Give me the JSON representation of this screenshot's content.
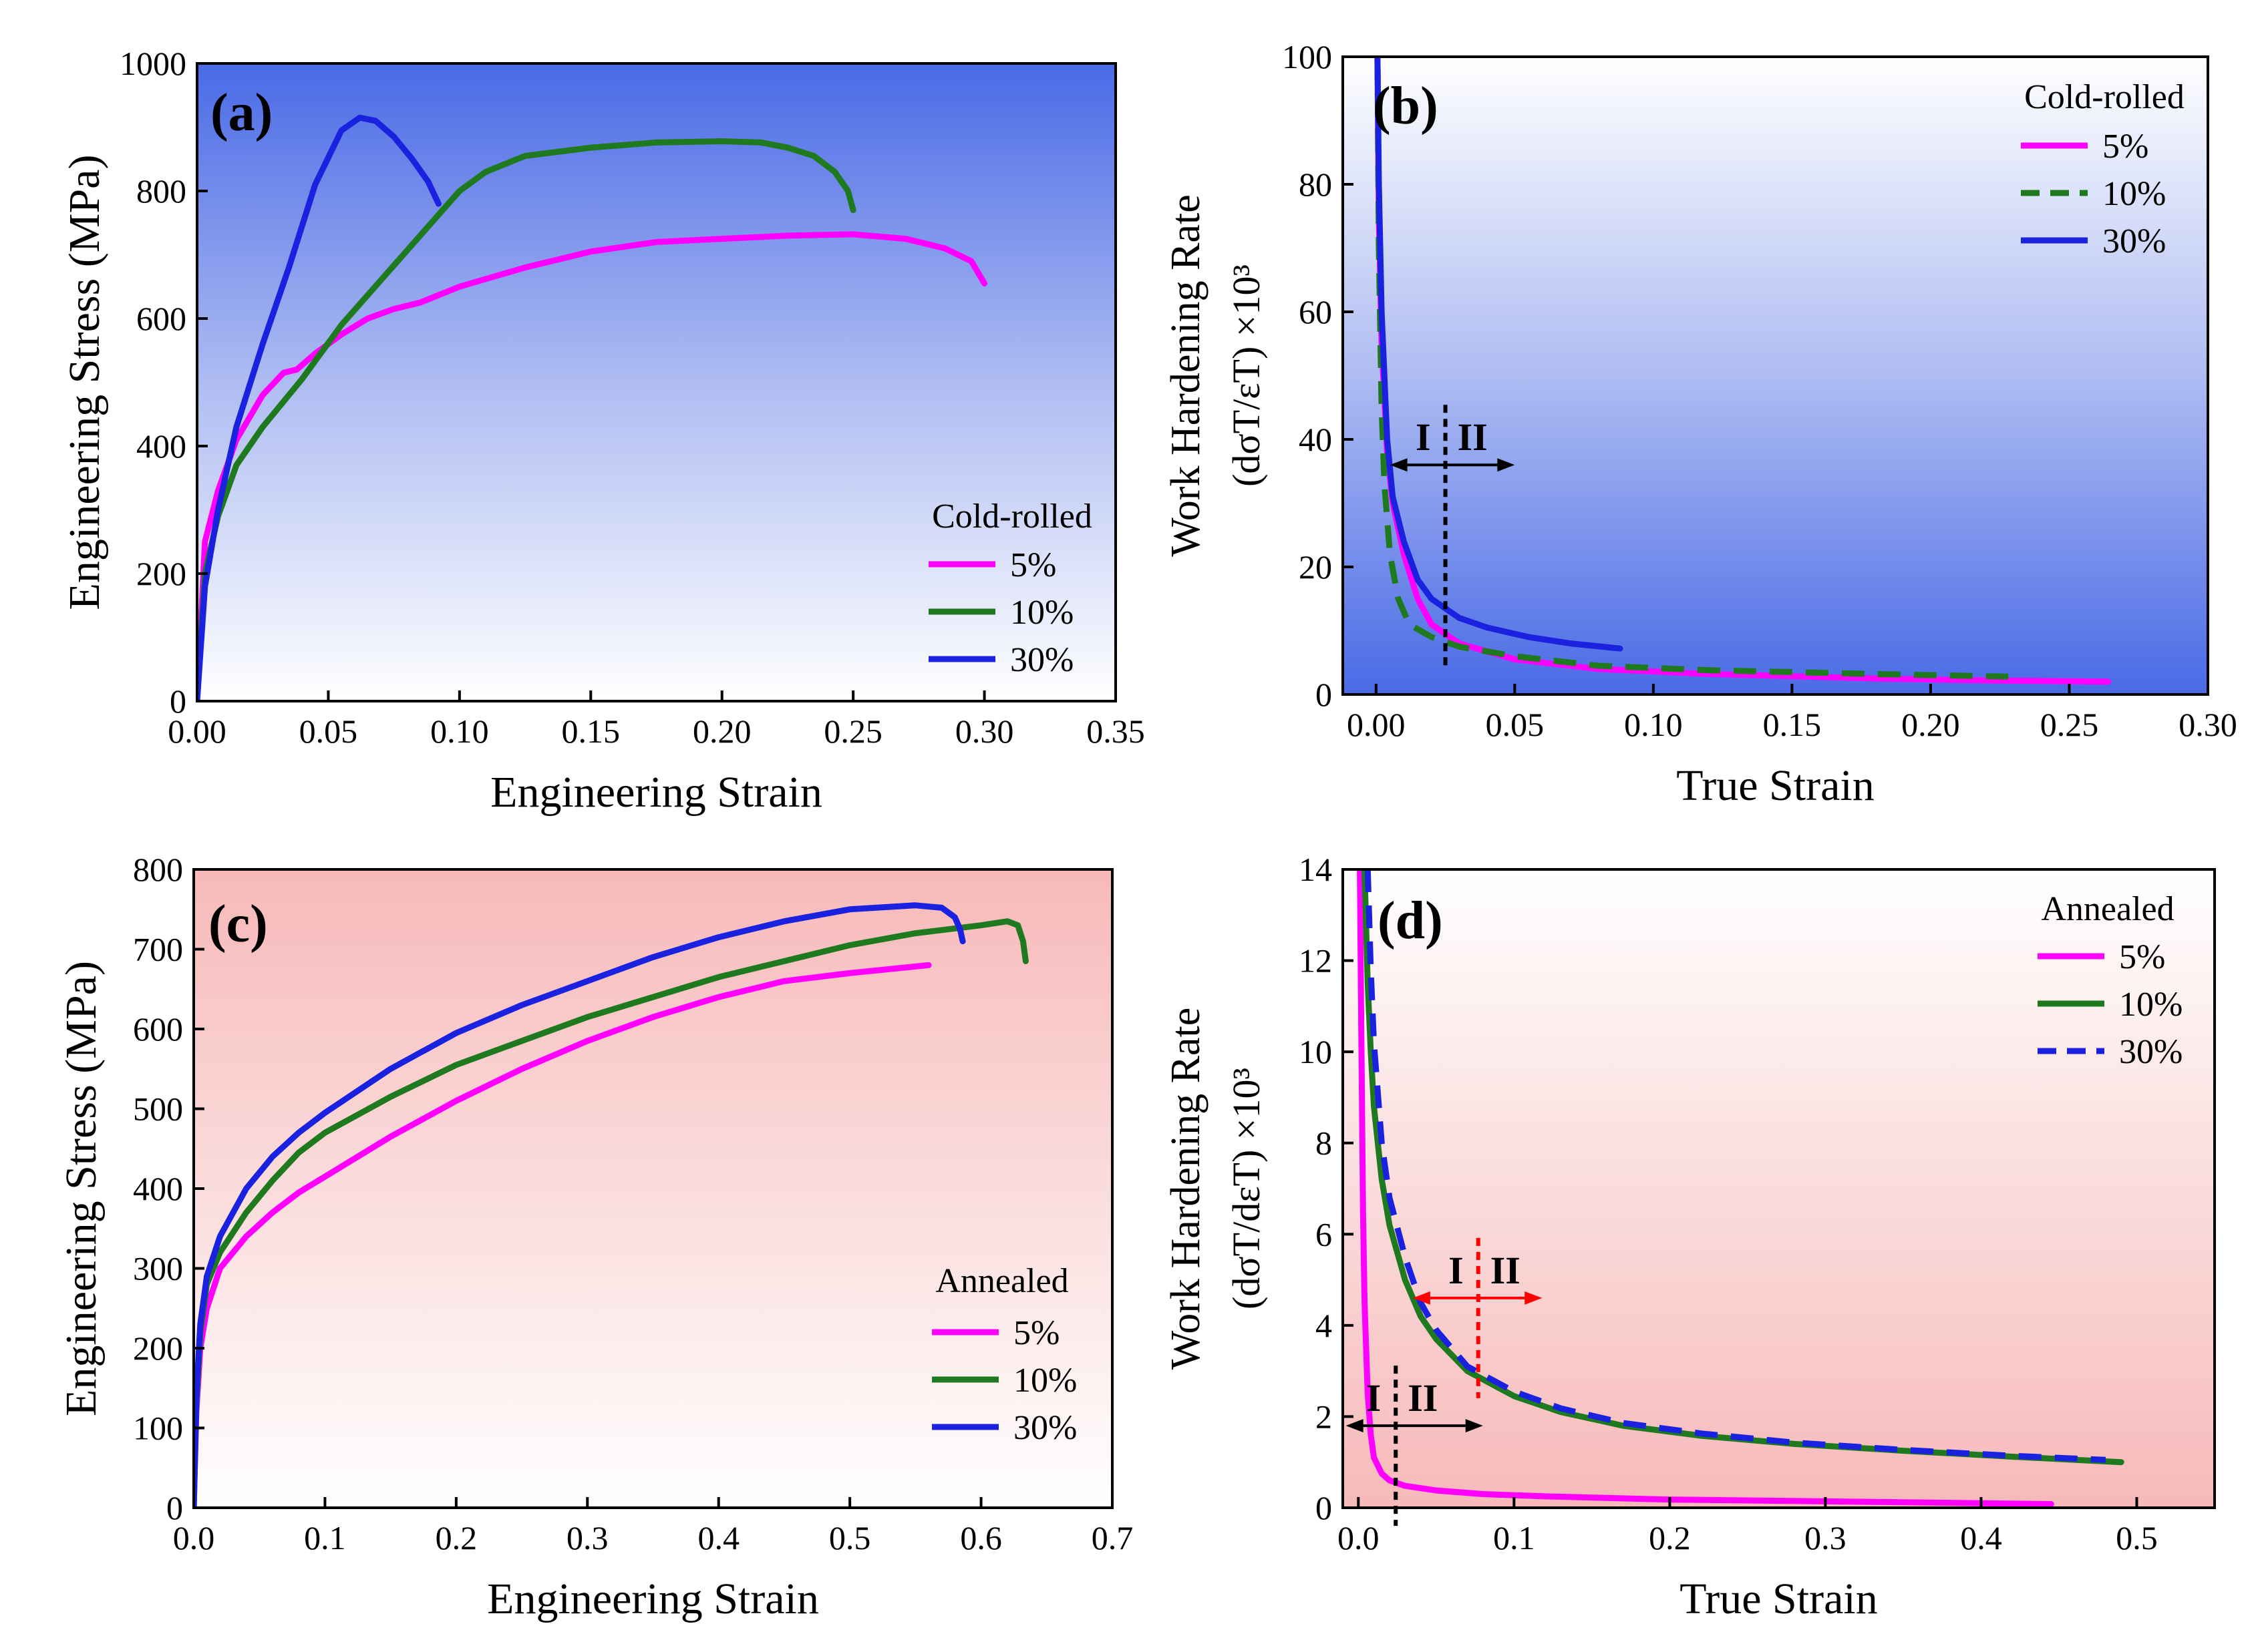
{
  "colors": {
    "magenta": "#ff00ff",
    "green": "#1f7a1f",
    "blue": "#1a22e0",
    "red": "#ff0000",
    "black": "#000000"
  },
  "chart_data": [
    {
      "type": "line",
      "panel_label": "(a)",
      "xlabel": "Engineering Strain",
      "ylabel": "Engineering Stress (MPa)",
      "xlim": [
        0,
        0.35
      ],
      "ylim": [
        0,
        1000
      ],
      "xticks": [
        0,
        0.05,
        0.1,
        0.15,
        0.2,
        0.25,
        0.3,
        0.35
      ],
      "xtick_labels": [
        "0.00",
        "0.05",
        "0.10",
        "0.15",
        "0.20",
        "0.25",
        "0.30",
        "0.35"
      ],
      "yticks": [
        0,
        200,
        400,
        600,
        800,
        1000
      ],
      "ytick_labels": [
        "0",
        "200",
        "400",
        "600",
        "800",
        "1000"
      ],
      "background": "gradient-blue",
      "legend": {
        "title": "Cold-rolled",
        "position": "right-middle"
      },
      "series": [
        {
          "name": "5%",
          "color": "#ff00ff",
          "dash": "solid",
          "x": [
            0,
            0.003,
            0.008,
            0.015,
            0.025,
            0.033,
            0.038,
            0.045,
            0.055,
            0.065,
            0.075,
            0.085,
            0.1,
            0.125,
            0.15,
            0.175,
            0.2,
            0.225,
            0.25,
            0.27,
            0.285,
            0.295,
            0.3
          ],
          "y": [
            0,
            250,
            330,
            410,
            480,
            515,
            520,
            545,
            575,
            600,
            615,
            625,
            650,
            680,
            705,
            720,
            725,
            730,
            732,
            725,
            710,
            690,
            655
          ]
        },
        {
          "name": "10%",
          "color": "#1f7a1f",
          "dash": "solid",
          "x": [
            0,
            0.003,
            0.008,
            0.015,
            0.025,
            0.04,
            0.055,
            0.07,
            0.085,
            0.1,
            0.11,
            0.125,
            0.15,
            0.175,
            0.2,
            0.215,
            0.225,
            0.235,
            0.243,
            0.248,
            0.25
          ],
          "y": [
            0,
            200,
            290,
            370,
            430,
            505,
            590,
            660,
            730,
            800,
            830,
            855,
            868,
            876,
            878,
            876,
            868,
            855,
            830,
            800,
            770
          ]
        },
        {
          "name": "30%",
          "color": "#1a22e0",
          "dash": "solid",
          "x": [
            0,
            0.003,
            0.008,
            0.015,
            0.025,
            0.035,
            0.045,
            0.055,
            0.062,
            0.068,
            0.075,
            0.082,
            0.088,
            0.092
          ],
          "y": [
            0,
            180,
            300,
            430,
            560,
            680,
            810,
            895,
            915,
            910,
            885,
            850,
            815,
            780
          ]
        }
      ]
    },
    {
      "type": "line",
      "panel_label": "(b)",
      "xlabel": "True Strain",
      "ylabel_line1": "Work Hardening Rate",
      "ylabel_line2": "(dσT/εT) ×10³",
      "xlim": [
        -0.012,
        0.3
      ],
      "ylim": [
        0,
        100
      ],
      "xticks": [
        0,
        0.05,
        0.1,
        0.15,
        0.2,
        0.25,
        0.3
      ],
      "xtick_labels": [
        "0.00",
        "0.05",
        "0.10",
        "0.15",
        "0.20",
        "0.25",
        "0.30"
      ],
      "yticks": [
        0,
        20,
        40,
        60,
        80,
        100
      ],
      "ytick_labels": [
        "0",
        "20",
        "40",
        "60",
        "80",
        "100"
      ],
      "background": "gradient-blue-inverted",
      "legend": {
        "title": "Cold-rolled",
        "position": "top-right"
      },
      "annotations": {
        "stage_left": "I",
        "stage_right": "II",
        "divider_x": 0.025,
        "arrow_y": 36,
        "arrow_from": 0.005,
        "arrow_to": 0.05
      },
      "series": [
        {
          "name": "5%",
          "color": "#ff00ff",
          "dash": "solid",
          "x": [
            0.0005,
            0.001,
            0.002,
            0.004,
            0.006,
            0.01,
            0.015,
            0.02,
            0.03,
            0.05,
            0.08,
            0.12,
            0.18,
            0.22,
            0.264
          ],
          "y": [
            100,
            75,
            55,
            38,
            30,
            22,
            15,
            11,
            8,
            5.5,
            4,
            3.2,
            2.5,
            2.2,
            2
          ]
        },
        {
          "name": "10%",
          "color": "#1f7a1f",
          "dash": "dashed",
          "x": [
            0.0005,
            0.001,
            0.002,
            0.003,
            0.005,
            0.008,
            0.012,
            0.02,
            0.03,
            0.05,
            0.08,
            0.12,
            0.18,
            0.228
          ],
          "y": [
            100,
            70,
            45,
            33,
            22,
            15,
            11,
            9,
            7.5,
            6,
            4.5,
            3.8,
            3.2,
            2.8
          ]
        },
        {
          "name": "30%",
          "color": "#1a22e0",
          "dash": "solid",
          "x": [
            0.0005,
            0.001,
            0.002,
            0.004,
            0.006,
            0.01,
            0.015,
            0.02,
            0.03,
            0.04,
            0.055,
            0.07,
            0.088
          ],
          "y": [
            100,
            80,
            60,
            40,
            31,
            24,
            18,
            15,
            12,
            10.5,
            9,
            8,
            7.2
          ]
        }
      ]
    },
    {
      "type": "line",
      "panel_label": "(c)",
      "xlabel": "Engineering Strain",
      "ylabel": "Engineering Stress (MPa)",
      "xlim": [
        0,
        0.7
      ],
      "ylim": [
        0,
        800
      ],
      "xticks": [
        0,
        0.1,
        0.2,
        0.3,
        0.4,
        0.5,
        0.6,
        0.7
      ],
      "xtick_labels": [
        "0.0",
        "0.1",
        "0.2",
        "0.3",
        "0.4",
        "0.5",
        "0.6",
        "0.7"
      ],
      "yticks": [
        0,
        100,
        200,
        300,
        400,
        500,
        600,
        700,
        800
      ],
      "ytick_labels": [
        "0",
        "100",
        "200",
        "300",
        "400",
        "500",
        "600",
        "700",
        "800"
      ],
      "background": "gradient-pink",
      "legend": {
        "title": "Annealed",
        "position": "right-middle"
      },
      "series": [
        {
          "name": "5%",
          "color": "#ff00ff",
          "dash": "solid",
          "x": [
            0,
            0.002,
            0.005,
            0.01,
            0.02,
            0.04,
            0.06,
            0.08,
            0.1,
            0.15,
            0.2,
            0.25,
            0.3,
            0.35,
            0.4,
            0.45,
            0.5,
            0.56
          ],
          "y": [
            0,
            120,
            200,
            250,
            300,
            340,
            370,
            395,
            415,
            465,
            510,
            550,
            585,
            615,
            640,
            660,
            670,
            680
          ]
        },
        {
          "name": "10%",
          "color": "#1f7a1f",
          "dash": "solid",
          "x": [
            0,
            0.002,
            0.005,
            0.01,
            0.02,
            0.04,
            0.06,
            0.08,
            0.1,
            0.15,
            0.2,
            0.25,
            0.3,
            0.35,
            0.4,
            0.45,
            0.5,
            0.55,
            0.6,
            0.62,
            0.628,
            0.632,
            0.634
          ],
          "y": [
            0,
            130,
            220,
            280,
            320,
            370,
            410,
            445,
            470,
            515,
            555,
            585,
            615,
            640,
            665,
            685,
            705,
            720,
            730,
            735,
            730,
            710,
            685
          ]
        },
        {
          "name": "30%",
          "color": "#1a22e0",
          "dash": "solid",
          "x": [
            0,
            0.002,
            0.005,
            0.01,
            0.02,
            0.04,
            0.06,
            0.08,
            0.1,
            0.15,
            0.2,
            0.25,
            0.3,
            0.35,
            0.4,
            0.45,
            0.5,
            0.55,
            0.57,
            0.58,
            0.584,
            0.586
          ],
          "y": [
            0,
            140,
            230,
            290,
            340,
            400,
            440,
            470,
            495,
            550,
            595,
            630,
            660,
            690,
            715,
            735,
            750,
            755,
            752,
            740,
            725,
            710
          ]
        }
      ]
    },
    {
      "type": "line",
      "panel_label": "(d)",
      "xlabel": "True Strain",
      "ylabel_line1": "Work Hardening Rate",
      "ylabel_line2": "(dσT/dεT) ×10³",
      "xlim": [
        -0.01,
        0.55
      ],
      "ylim": [
        0,
        14
      ],
      "xticks": [
        0,
        0.1,
        0.2,
        0.3,
        0.4,
        0.5
      ],
      "xtick_labels": [
        "0.0",
        "0.1",
        "0.2",
        "0.3",
        "0.4",
        "0.5"
      ],
      "yticks": [
        0,
        2,
        4,
        6,
        8,
        10,
        12,
        14
      ],
      "ytick_labels": [
        "0",
        "2",
        "4",
        "6",
        "8",
        "10",
        "12",
        "14"
      ],
      "background": "gradient-pink-inverted",
      "legend": {
        "title": "Annealed",
        "position": "top-right"
      },
      "annotations": {
        "black": {
          "stage_left": "I",
          "stage_right": "II",
          "divider_x": 0.024,
          "arrow_y": 1.8,
          "arrow_from": -0.008,
          "arrow_to": 0.08
        },
        "red": {
          "stage_left": "I",
          "stage_right": "II",
          "divider_x": 0.077,
          "arrow_y": 4.6,
          "arrow_from": 0.035,
          "arrow_to": 0.118
        }
      },
      "series": [
        {
          "name": "5%",
          "color": "#ff00ff",
          "dash": "solid",
          "x": [
            0.001,
            0.002,
            0.003,
            0.004,
            0.006,
            0.008,
            0.01,
            0.015,
            0.02,
            0.03,
            0.05,
            0.08,
            0.12,
            0.2,
            0.3,
            0.4,
            0.445
          ],
          "y": [
            14,
            10,
            6.5,
            4.5,
            2.5,
            1.6,
            1.1,
            0.75,
            0.6,
            0.48,
            0.38,
            0.3,
            0.25,
            0.18,
            0.14,
            0.1,
            0.08
          ]
        },
        {
          "name": "10%",
          "color": "#1f7a1f",
          "dash": "solid",
          "x": [
            0.004,
            0.006,
            0.008,
            0.01,
            0.015,
            0.02,
            0.03,
            0.04,
            0.05,
            0.07,
            0.1,
            0.13,
            0.17,
            0.22,
            0.28,
            0.35,
            0.42,
            0.49
          ],
          "y": [
            14,
            11.5,
            10,
            8.8,
            7.2,
            6.2,
            5,
            4.2,
            3.7,
            3.0,
            2.45,
            2.1,
            1.8,
            1.58,
            1.4,
            1.25,
            1.12,
            1.0
          ]
        },
        {
          "name": "30%",
          "color": "#1a22e0",
          "dash": "dashed",
          "x": [
            0.006,
            0.008,
            0.01,
            0.015,
            0.02,
            0.03,
            0.04,
            0.05,
            0.07,
            0.1,
            0.13,
            0.17,
            0.22,
            0.28,
            0.35,
            0.42,
            0.48
          ],
          "y": [
            14,
            11.8,
            10.2,
            8,
            6.8,
            5.5,
            4.5,
            3.9,
            3.1,
            2.55,
            2.18,
            1.86,
            1.63,
            1.43,
            1.27,
            1.14,
            1.05
          ]
        }
      ]
    }
  ]
}
